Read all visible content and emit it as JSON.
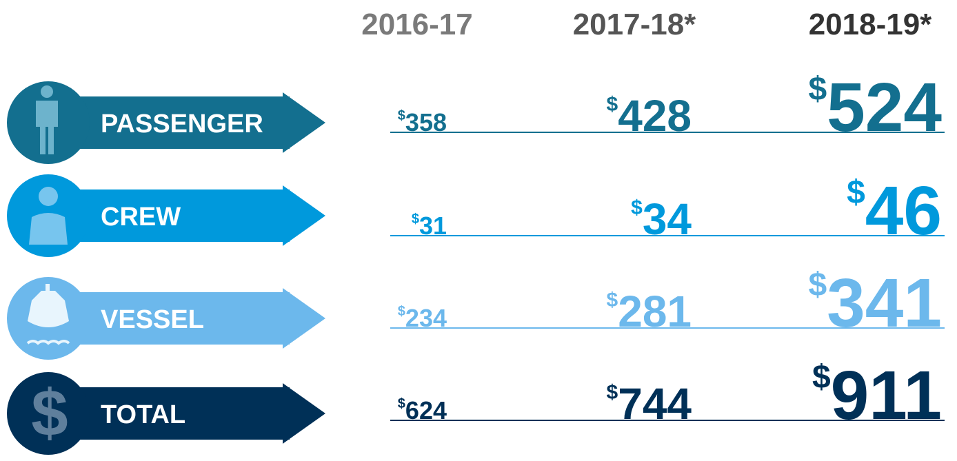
{
  "columns": [
    "2016-17",
    "2017-18*",
    "2018-19*"
  ],
  "currency_symbol": "$",
  "rows": [
    {
      "label": "PASSENGER",
      "values": [
        358,
        428,
        524
      ]
    },
    {
      "label": "CREW",
      "values": [
        31,
        34,
        46
      ]
    },
    {
      "label": "VESSEL",
      "values": [
        234,
        281,
        341
      ]
    },
    {
      "label": "TOTAL",
      "values": [
        624,
        744,
        911
      ]
    }
  ]
}
